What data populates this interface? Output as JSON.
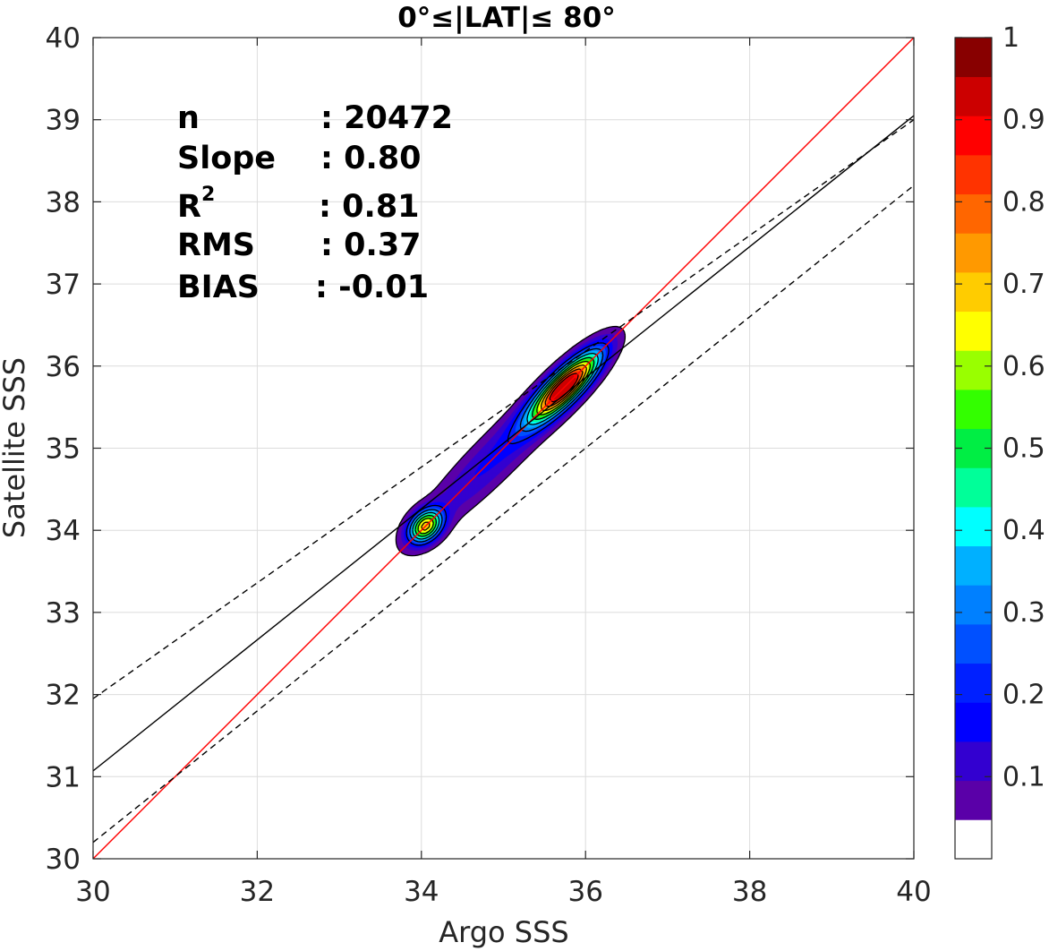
{
  "chart_data": {
    "type": "contour",
    "title": "0°≤|LAT|≤ 80°",
    "xlabel": "Argo SSS",
    "ylabel": "Satellite SSS",
    "xlim": [
      30,
      40
    ],
    "ylim": [
      30,
      40
    ],
    "xticks": [
      "30",
      "32",
      "34",
      "36",
      "38",
      "40"
    ],
    "yticks": [
      "30",
      "31",
      "32",
      "33",
      "34",
      "35",
      "36",
      "37",
      "38",
      "39",
      "40"
    ],
    "grid": true,
    "stats": [
      {
        "label": "n",
        "value": ": 20472"
      },
      {
        "label": "Slope",
        "value": ": 0.80"
      },
      {
        "label": "R",
        "sup": "2",
        "value": ": 0.81"
      },
      {
        "label": "RMS",
        "value": ": 0.37"
      },
      {
        "label": "BIAS",
        "value": ": -0.01"
      }
    ],
    "lines": [
      {
        "name": "one-to-one",
        "color": "#ff0000",
        "style": "solid",
        "x": [
          30,
          40
        ],
        "y": [
          30,
          40
        ]
      },
      {
        "name": "regression",
        "color": "#000000",
        "style": "solid",
        "x": [
          30,
          40
        ],
        "y": [
          31.07,
          39.05
        ]
      },
      {
        "name": "upper-bound",
        "color": "#000000",
        "style": "dashed",
        "x": [
          30,
          40
        ],
        "y": [
          31.95,
          39.0
        ]
      },
      {
        "name": "lower-bound",
        "color": "#000000",
        "style": "dashed",
        "x": [
          30,
          40
        ],
        "y": [
          30.2,
          38.2
        ]
      }
    ],
    "density_peaks": [
      {
        "x": 34.05,
        "y": 34.05,
        "max_level": 0.7
      },
      {
        "x": 35.75,
        "y": 35.75,
        "max_level": 1.0
      }
    ],
    "colorbar": {
      "levels": [
        0,
        0.05,
        0.1,
        0.15,
        0.2,
        0.25,
        0.3,
        0.35,
        0.4,
        0.45,
        0.5,
        0.55,
        0.6,
        0.65,
        0.7,
        0.75,
        0.8,
        0.85,
        0.9,
        0.95,
        1.0
      ],
      "colors": [
        "#ffffff",
        "#5a00a8",
        "#3300d0",
        "#0000ff",
        "#0020ff",
        "#0050ff",
        "#0080ff",
        "#00b0ff",
        "#00ffff",
        "#00ff99",
        "#00ee44",
        "#33ff00",
        "#99ff00",
        "#ffff00",
        "#ffcc00",
        "#ff9900",
        "#ff6600",
        "#ff3300",
        "#ff0000",
        "#cc0000",
        "#880000"
      ],
      "tick_values": [
        0.1,
        0.2,
        0.3,
        0.4,
        0.5,
        0.6,
        0.7,
        0.8,
        0.9,
        1.0
      ],
      "tick_labels": [
        "0.1",
        "0.2",
        "0.3",
        "0.4",
        "0.5",
        "0.6",
        "0.7",
        "0.8",
        "0.9",
        "1"
      ]
    }
  }
}
